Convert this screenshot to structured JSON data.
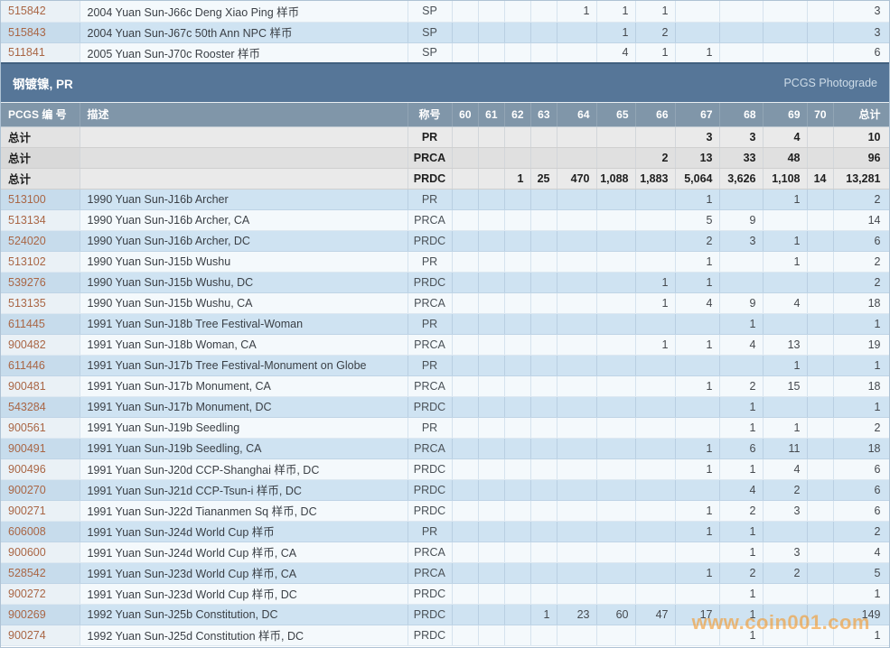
{
  "columns": {
    "id": "PCGS 编 号",
    "desc": "描述",
    "grade": "称号",
    "grades": [
      "60",
      "61",
      "62",
      "63",
      "64",
      "65",
      "66",
      "67",
      "68",
      "69",
      "70"
    ],
    "total": "总计"
  },
  "top_rows": [
    {
      "id": "515842",
      "desc": "2004 Yuan Sun-J66c Deng Xiao Ping 样币",
      "grade": "SP",
      "values": {
        "64": "1",
        "65": "1",
        "66": "1"
      },
      "total": "3"
    },
    {
      "id": "515843",
      "desc": "2004 Yuan Sun-J67c 50th Ann NPC 样币",
      "grade": "SP",
      "values": {
        "65": "1",
        "66": "2"
      },
      "total": "3"
    },
    {
      "id": "511841",
      "desc": "2005 Yuan Sun-J70c Rooster 样币",
      "grade": "SP",
      "values": {
        "65": "4",
        "66": "1",
        "67": "1"
      },
      "total": "6"
    }
  ],
  "section": {
    "title": "钢镀镍, PR",
    "right_label": "PCGS Photograde"
  },
  "summary_rows": [
    {
      "label": "总计",
      "grade": "PR",
      "values": {
        "67": "3",
        "68": "3",
        "69": "4"
      },
      "total": "10"
    },
    {
      "label": "总计",
      "grade": "PRCA",
      "values": {
        "66": "2",
        "67": "13",
        "68": "33",
        "69": "48"
      },
      "total": "96"
    },
    {
      "label": "总计",
      "grade": "PRDC",
      "values": {
        "62": "1",
        "63": "25",
        "64": "470",
        "65": "1,088",
        "66": "1,883",
        "67": "5,064",
        "68": "3,626",
        "69": "1,108",
        "70": "14"
      },
      "total": "13,281"
    }
  ],
  "rows": [
    {
      "id": "513100",
      "desc": "1990 Yuan Sun-J16b Archer",
      "grade": "PR",
      "values": {
        "67": "1",
        "69": "1"
      },
      "total": "2"
    },
    {
      "id": "513134",
      "desc": "1990 Yuan Sun-J16b Archer, CA",
      "grade": "PRCA",
      "values": {
        "67": "5",
        "68": "9"
      },
      "total": "14"
    },
    {
      "id": "524020",
      "desc": "1990 Yuan Sun-J16b Archer, DC",
      "grade": "PRDC",
      "values": {
        "67": "2",
        "68": "3",
        "69": "1"
      },
      "total": "6"
    },
    {
      "id": "513102",
      "desc": "1990 Yuan Sun-J15b Wushu",
      "grade": "PR",
      "values": {
        "67": "1",
        "69": "1"
      },
      "total": "2"
    },
    {
      "id": "539276",
      "desc": "1990 Yuan Sun-J15b Wushu, DC",
      "grade": "PRDC",
      "values": {
        "66": "1",
        "67": "1"
      },
      "total": "2"
    },
    {
      "id": "513135",
      "desc": "1990 Yuan Sun-J15b Wushu, CA",
      "grade": "PRCA",
      "values": {
        "66": "1",
        "67": "4",
        "68": "9",
        "69": "4"
      },
      "total": "18"
    },
    {
      "id": "611445",
      "desc": "1991 Yuan Sun-J18b Tree Festival-Woman",
      "grade": "PR",
      "values": {
        "68": "1"
      },
      "total": "1"
    },
    {
      "id": "900482",
      "desc": "1991 Yuan Sun-J18b Woman, CA",
      "grade": "PRCA",
      "values": {
        "66": "1",
        "67": "1",
        "68": "4",
        "69": "13"
      },
      "total": "19"
    },
    {
      "id": "611446",
      "desc": "1991 Yuan Sun-J17b Tree Festival-Monument on Globe",
      "grade": "PR",
      "values": {
        "69": "1"
      },
      "total": "1"
    },
    {
      "id": "900481",
      "desc": "1991 Yuan Sun-J17b Monument, CA",
      "grade": "PRCA",
      "values": {
        "67": "1",
        "68": "2",
        "69": "15"
      },
      "total": "18"
    },
    {
      "id": "543284",
      "desc": "1991 Yuan Sun-J17b Monument, DC",
      "grade": "PRDC",
      "values": {
        "68": "1"
      },
      "total": "1"
    },
    {
      "id": "900561",
      "desc": "1991 Yuan Sun-J19b Seedling",
      "grade": "PR",
      "values": {
        "68": "1",
        "69": "1"
      },
      "total": "2"
    },
    {
      "id": "900491",
      "desc": "1991 Yuan Sun-J19b Seedling, CA",
      "grade": "PRCA",
      "values": {
        "67": "1",
        "68": "6",
        "69": "11"
      },
      "total": "18"
    },
    {
      "id": "900496",
      "desc": "1991 Yuan Sun-J20d CCP-Shanghai 样币, DC",
      "grade": "PRDC",
      "values": {
        "67": "1",
        "68": "1",
        "69": "4"
      },
      "total": "6"
    },
    {
      "id": "900270",
      "desc": "1991 Yuan Sun-J21d CCP-Tsun-i 样币, DC",
      "grade": "PRDC",
      "values": {
        "68": "4",
        "69": "2"
      },
      "total": "6"
    },
    {
      "id": "900271",
      "desc": "1991 Yuan Sun-J22d Tiananmen Sq 样币, DC",
      "grade": "PRDC",
      "values": {
        "67": "1",
        "68": "2",
        "69": "3"
      },
      "total": "6"
    },
    {
      "id": "606008",
      "desc": "1991 Yuan Sun-J24d World Cup 样币",
      "grade": "PR",
      "values": {
        "67": "1",
        "68": "1"
      },
      "total": "2"
    },
    {
      "id": "900600",
      "desc": "1991 Yuan Sun-J24d World Cup 样币, CA",
      "grade": "PRCA",
      "values": {
        "68": "1",
        "69": "3"
      },
      "total": "4"
    },
    {
      "id": "528542",
      "desc": "1991 Yuan Sun-J23d World Cup 样币, CA",
      "grade": "PRCA",
      "values": {
        "67": "1",
        "68": "2",
        "69": "2"
      },
      "total": "5"
    },
    {
      "id": "900272",
      "desc": "1991 Yuan Sun-J23d World Cup 样币, DC",
      "grade": "PRDC",
      "values": {
        "68": "1"
      },
      "total": "1"
    },
    {
      "id": "900269",
      "desc": "1992 Yuan Sun-J25b Constitution, DC",
      "grade": "PRDC",
      "values": {
        "63": "1",
        "64": "23",
        "65": "60",
        "66": "47",
        "67": "17",
        "68": "1"
      },
      "total": "149"
    },
    {
      "id": "900274",
      "desc": "1992 Yuan Sun-J25d Constitution 样币, DC",
      "grade": "PRDC",
      "values": {
        "68": "1"
      },
      "total": "1"
    }
  ],
  "watermark": "www.coin001.com",
  "colors": {
    "section_band": "#567698",
    "section_band_border": "#41607f",
    "header_row": "#8096a9",
    "row_blue": "#cfe3f2",
    "row_white": "#f4f9fc",
    "row_gray": "#eaeaea",
    "id_link": "#a96645",
    "watermark_orange": "#f49a2d"
  }
}
